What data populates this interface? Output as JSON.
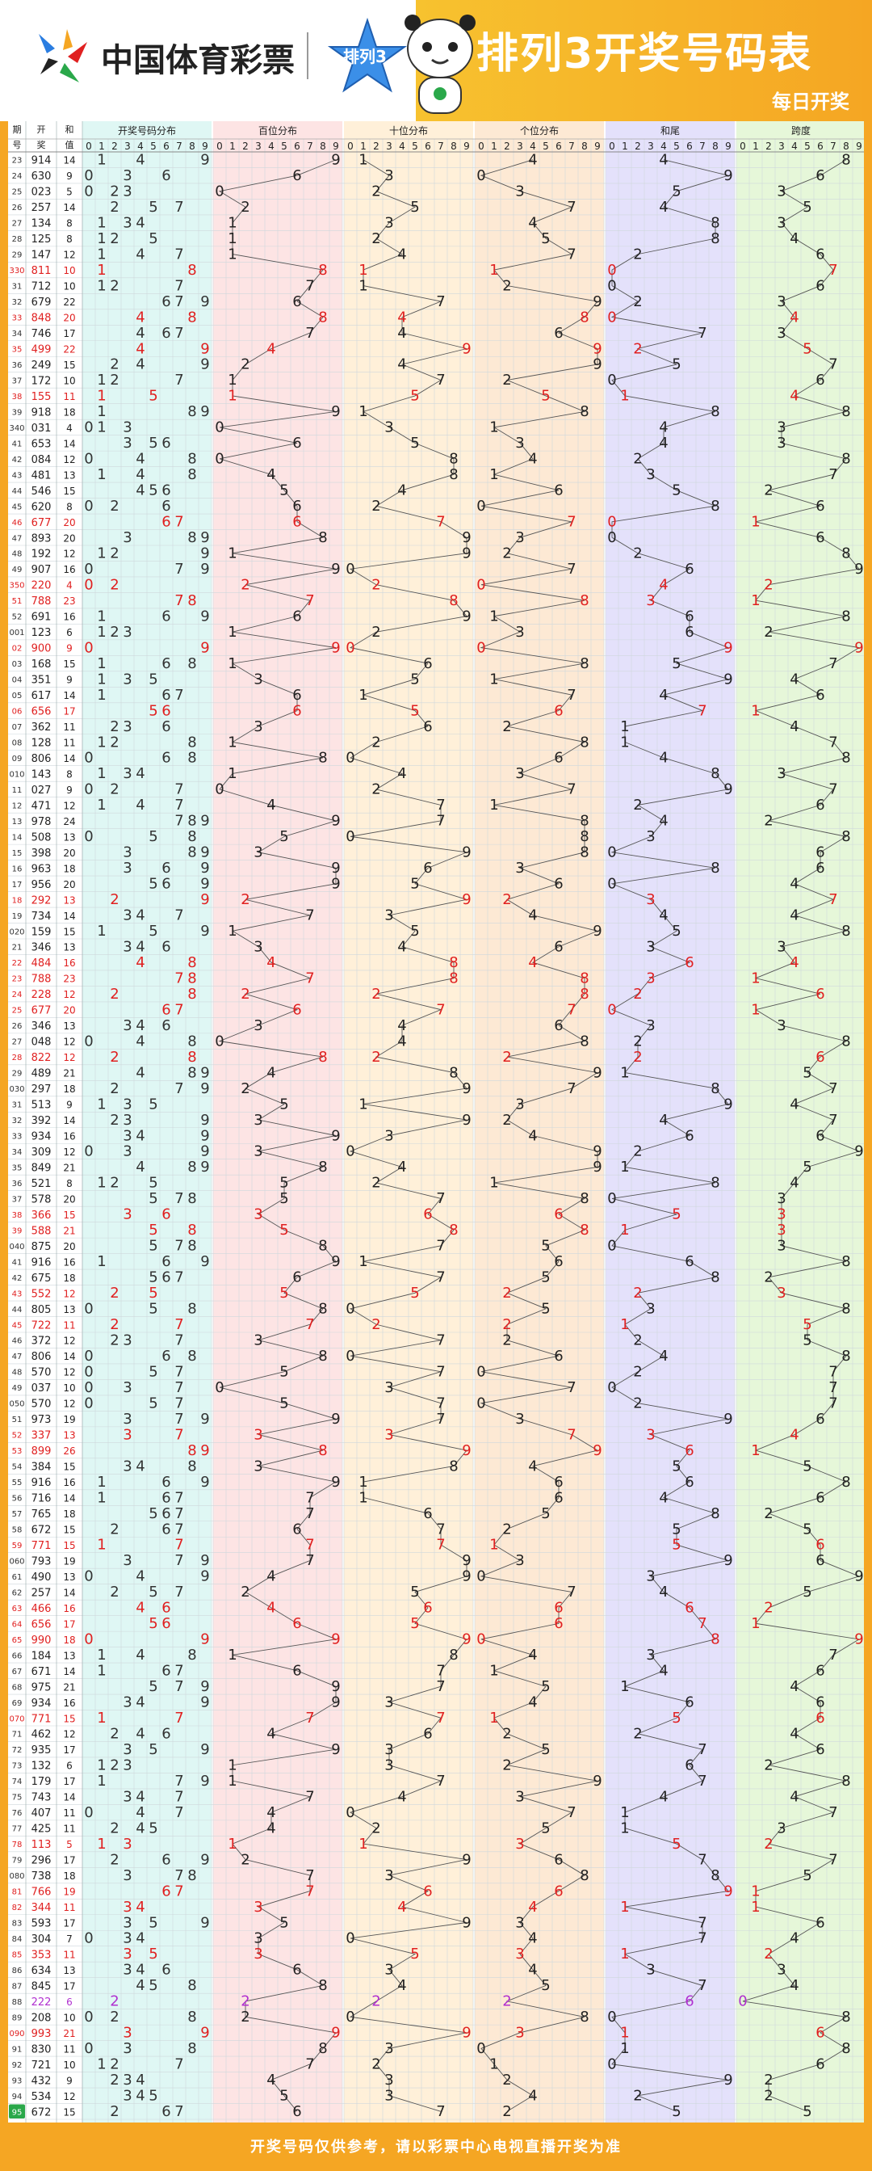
{
  "header": {
    "logo_text": "中国体育彩票",
    "badge_text": "排列3",
    "title": "排列3开奖号码表",
    "subtitle": "每日开奖"
  },
  "footer": {
    "note": "开奖号码仅供参考，请以彩票中心电视直播开奖为准"
  },
  "colors": {
    "hundreds_bg": "#fde4e4",
    "tens_bg": "#fff0d9",
    "units_bg": "#fde9d4",
    "sum_bg": "#e4e1fb",
    "span_bg": "#e6f7d9",
    "digits_bg": "#dff7f4",
    "highlight": "#e02020",
    "purple": "#b030d0"
  },
  "chart_data": {
    "type": "table",
    "columns": {
      "period": "期号",
      "draw": "开奖",
      "sum": "和值",
      "digits": "开奖号码分布",
      "hundreds": "百位分布",
      "tens": "十位分布",
      "units": "个位分布",
      "sum_tail": "和尾",
      "span": "跨度"
    },
    "digit_ticks": [
      "0",
      "1",
      "2",
      "3",
      "4",
      "5",
      "6",
      "7",
      "8",
      "9"
    ],
    "rows": [
      {
        "p": "23",
        "n": "914",
        "s": "14"
      },
      {
        "p": "24",
        "n": "630",
        "s": "9"
      },
      {
        "p": "25",
        "n": "023",
        "s": "5"
      },
      {
        "p": "26",
        "n": "257",
        "s": "14"
      },
      {
        "p": "27",
        "n": "134",
        "s": "8"
      },
      {
        "p": "28",
        "n": "125",
        "s": "8"
      },
      {
        "p": "29",
        "n": "147",
        "s": "12"
      },
      {
        "p": "330",
        "n": "811",
        "s": "10"
      },
      {
        "p": "31",
        "n": "712",
        "s": "10"
      },
      {
        "p": "32",
        "n": "679",
        "s": "22"
      },
      {
        "p": "33",
        "n": "848",
        "s": "20"
      },
      {
        "p": "34",
        "n": "746",
        "s": "17"
      },
      {
        "p": "35",
        "n": "499",
        "s": "22"
      },
      {
        "p": "36",
        "n": "249",
        "s": "15"
      },
      {
        "p": "37",
        "n": "172",
        "s": "10"
      },
      {
        "p": "38",
        "n": "155",
        "s": "11"
      },
      {
        "p": "39",
        "n": "918",
        "s": "18"
      },
      {
        "p": "340",
        "n": "031",
        "s": "4"
      },
      {
        "p": "41",
        "n": "653",
        "s": "14"
      },
      {
        "p": "42",
        "n": "084",
        "s": "12"
      },
      {
        "p": "43",
        "n": "481",
        "s": "13"
      },
      {
        "p": "44",
        "n": "546",
        "s": "15"
      },
      {
        "p": "45",
        "n": "620",
        "s": "8"
      },
      {
        "p": "46",
        "n": "677",
        "s": "20"
      },
      {
        "p": "47",
        "n": "893",
        "s": "20"
      },
      {
        "p": "48",
        "n": "192",
        "s": "12"
      },
      {
        "p": "49",
        "n": "907",
        "s": "16"
      },
      {
        "p": "350",
        "n": "220",
        "s": "4"
      },
      {
        "p": "51",
        "n": "788",
        "s": "23"
      },
      {
        "p": "52",
        "n": "691",
        "s": "16"
      },
      {
        "p": "001",
        "n": "123",
        "s": "6"
      },
      {
        "p": "02",
        "n": "900",
        "s": "9"
      },
      {
        "p": "03",
        "n": "168",
        "s": "15"
      },
      {
        "p": "04",
        "n": "351",
        "s": "9"
      },
      {
        "p": "05",
        "n": "617",
        "s": "14"
      },
      {
        "p": "06",
        "n": "656",
        "s": "17"
      },
      {
        "p": "07",
        "n": "362",
        "s": "11"
      },
      {
        "p": "08",
        "n": "128",
        "s": "11"
      },
      {
        "p": "09",
        "n": "806",
        "s": "14"
      },
      {
        "p": "010",
        "n": "143",
        "s": "8"
      },
      {
        "p": "11",
        "n": "027",
        "s": "9"
      },
      {
        "p": "12",
        "n": "471",
        "s": "12"
      },
      {
        "p": "13",
        "n": "978",
        "s": "24"
      },
      {
        "p": "14",
        "n": "508",
        "s": "13"
      },
      {
        "p": "15",
        "n": "398",
        "s": "20"
      },
      {
        "p": "16",
        "n": "963",
        "s": "18"
      },
      {
        "p": "17",
        "n": "956",
        "s": "20"
      },
      {
        "p": "18",
        "n": "292",
        "s": "13"
      },
      {
        "p": "19",
        "n": "734",
        "s": "14"
      },
      {
        "p": "020",
        "n": "159",
        "s": "15"
      },
      {
        "p": "21",
        "n": "346",
        "s": "13"
      },
      {
        "p": "22",
        "n": "484",
        "s": "16"
      },
      {
        "p": "23",
        "n": "788",
        "s": "23"
      },
      {
        "p": "24",
        "n": "228",
        "s": "12"
      },
      {
        "p": "25",
        "n": "677",
        "s": "20"
      },
      {
        "p": "26",
        "n": "346",
        "s": "13"
      },
      {
        "p": "27",
        "n": "048",
        "s": "12"
      },
      {
        "p": "28",
        "n": "822",
        "s": "12"
      },
      {
        "p": "29",
        "n": "489",
        "s": "21"
      },
      {
        "p": "030",
        "n": "297",
        "s": "18"
      },
      {
        "p": "31",
        "n": "513",
        "s": "9"
      },
      {
        "p": "32",
        "n": "392",
        "s": "14"
      },
      {
        "p": "33",
        "n": "934",
        "s": "16"
      },
      {
        "p": "34",
        "n": "309",
        "s": "12"
      },
      {
        "p": "35",
        "n": "849",
        "s": "21"
      },
      {
        "p": "36",
        "n": "521",
        "s": "8"
      },
      {
        "p": "37",
        "n": "578",
        "s": "20"
      },
      {
        "p": "38",
        "n": "366",
        "s": "15"
      },
      {
        "p": "39",
        "n": "588",
        "s": "21"
      },
      {
        "p": "040",
        "n": "875",
        "s": "20"
      },
      {
        "p": "41",
        "n": "916",
        "s": "16"
      },
      {
        "p": "42",
        "n": "675",
        "s": "18"
      },
      {
        "p": "43",
        "n": "552",
        "s": "12"
      },
      {
        "p": "44",
        "n": "805",
        "s": "13"
      },
      {
        "p": "45",
        "n": "722",
        "s": "11"
      },
      {
        "p": "46",
        "n": "372",
        "s": "12"
      },
      {
        "p": "47",
        "n": "806",
        "s": "14"
      },
      {
        "p": "48",
        "n": "570",
        "s": "12"
      },
      {
        "p": "49",
        "n": "037",
        "s": "10"
      },
      {
        "p": "050",
        "n": "570",
        "s": "12"
      },
      {
        "p": "51",
        "n": "973",
        "s": "19"
      },
      {
        "p": "52",
        "n": "337",
        "s": "13"
      },
      {
        "p": "53",
        "n": "899",
        "s": "26"
      },
      {
        "p": "54",
        "n": "384",
        "s": "15"
      },
      {
        "p": "55",
        "n": "916",
        "s": "16"
      },
      {
        "p": "56",
        "n": "716",
        "s": "14"
      },
      {
        "p": "57",
        "n": "765",
        "s": "18"
      },
      {
        "p": "58",
        "n": "672",
        "s": "15"
      },
      {
        "p": "59",
        "n": "771",
        "s": "15"
      },
      {
        "p": "060",
        "n": "793",
        "s": "19"
      },
      {
        "p": "61",
        "n": "490",
        "s": "13"
      },
      {
        "p": "62",
        "n": "257",
        "s": "14"
      },
      {
        "p": "63",
        "n": "466",
        "s": "16"
      },
      {
        "p": "64",
        "n": "656",
        "s": "17"
      },
      {
        "p": "65",
        "n": "990",
        "s": "18"
      },
      {
        "p": "66",
        "n": "184",
        "s": "13"
      },
      {
        "p": "67",
        "n": "671",
        "s": "14"
      },
      {
        "p": "68",
        "n": "975",
        "s": "21"
      },
      {
        "p": "69",
        "n": "934",
        "s": "16"
      },
      {
        "p": "070",
        "n": "771",
        "s": "15"
      },
      {
        "p": "71",
        "n": "462",
        "s": "12"
      },
      {
        "p": "72",
        "n": "935",
        "s": "17"
      },
      {
        "p": "73",
        "n": "132",
        "s": "6"
      },
      {
        "p": "74",
        "n": "179",
        "s": "17"
      },
      {
        "p": "75",
        "n": "743",
        "s": "14"
      },
      {
        "p": "76",
        "n": "407",
        "s": "11"
      },
      {
        "p": "77",
        "n": "425",
        "s": "11"
      },
      {
        "p": "78",
        "n": "113",
        "s": "5"
      },
      {
        "p": "79",
        "n": "296",
        "s": "17"
      },
      {
        "p": "080",
        "n": "738",
        "s": "18"
      },
      {
        "p": "81",
        "n": "766",
        "s": "19"
      },
      {
        "p": "82",
        "n": "344",
        "s": "11"
      },
      {
        "p": "83",
        "n": "593",
        "s": "17"
      },
      {
        "p": "84",
        "n": "304",
        "s": "7"
      },
      {
        "p": "85",
        "n": "353",
        "s": "11"
      },
      {
        "p": "86",
        "n": "634",
        "s": "13"
      },
      {
        "p": "87",
        "n": "845",
        "s": "17"
      },
      {
        "p": "88",
        "n": "222",
        "s": "6"
      },
      {
        "p": "89",
        "n": "208",
        "s": "10"
      },
      {
        "p": "090",
        "n": "993",
        "s": "21"
      },
      {
        "p": "91",
        "n": "830",
        "s": "11"
      },
      {
        "p": "92",
        "n": "721",
        "s": "10"
      },
      {
        "p": "93",
        "n": "432",
        "s": "9"
      },
      {
        "p": "94",
        "n": "534",
        "s": "12"
      },
      {
        "p": "95",
        "n": "672",
        "s": "15"
      }
    ]
  }
}
